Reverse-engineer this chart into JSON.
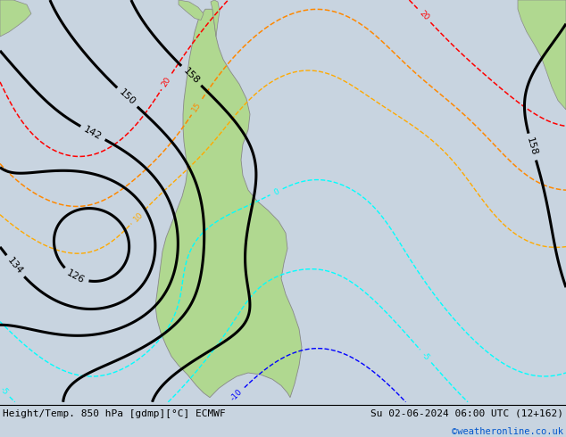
{
  "title_left": "Height/Temp. 850 hPa [gdmp][°C] ECMWF",
  "title_right": "Su 02-06-2024 06:00 UTC (12+162)",
  "copyright": "©weatheronline.co.uk",
  "bg_color": "#c8d4e0",
  "land_color": "#b0d890",
  "border_color": "#888888",
  "fig_width": 6.34,
  "fig_height": 4.9,
  "dpi": 100,
  "title_fontsize": 8.0,
  "copyright_color": "#0055cc",
  "copyright_fontsize": 7.5
}
